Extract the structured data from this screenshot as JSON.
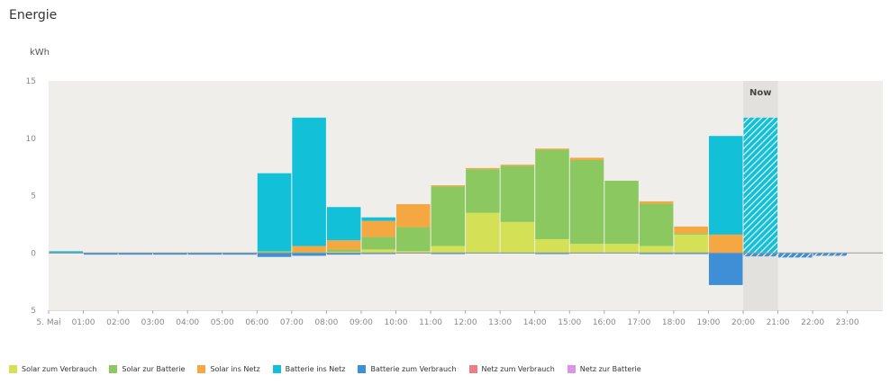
{
  "title": "Energie",
  "chart_data": {
    "type": "bar",
    "stacked": true,
    "ylabel": "kWh",
    "ylim": [
      -5,
      15
    ],
    "yticks": [
      {
        "value": 15,
        "label": "15"
      },
      {
        "value": 10,
        "label": "10"
      },
      {
        "value": 5,
        "label": "5"
      },
      {
        "value": 0,
        "label": "0"
      },
      {
        "value": -5,
        "label": "5"
      }
    ],
    "categories": [
      "00:00",
      "01:00",
      "02:00",
      "03:00",
      "04:00",
      "05:00",
      "06:00",
      "07:00",
      "08:00",
      "09:00",
      "10:00",
      "11:00",
      "12:00",
      "13:00",
      "14:00",
      "15:00",
      "16:00",
      "17:00",
      "18:00",
      "19:00",
      "20:00",
      "21:00",
      "22:00",
      "23:00"
    ],
    "xtick_labels": [
      "5. Mai",
      "01:00",
      "02:00",
      "03:00",
      "04:00",
      "05:00",
      "06:00",
      "07:00",
      "08:00",
      "09:00",
      "10:00",
      "11:00",
      "12:00",
      "13:00",
      "14:00",
      "15:00",
      "16:00",
      "17:00",
      "18:00",
      "19:00",
      "20:00",
      "21:00",
      "22:00",
      "23:00"
    ],
    "now_label": "Now",
    "now_hour": 20,
    "forecast_from_hour": 20,
    "grid": false,
    "legend_position": "bottom",
    "series": [
      {
        "name": "Solar zum Verbrauch",
        "color": "#d4e157",
        "values": [
          0,
          0,
          0,
          0,
          0,
          0,
          0.05,
          0.05,
          0.1,
          0.3,
          0.15,
          0.6,
          3.5,
          2.7,
          1.2,
          0.8,
          0.8,
          0.6,
          1.6,
          0,
          0,
          0,
          0,
          0
        ]
      },
      {
        "name": "Solar zur Batterie",
        "color": "#8bc860",
        "values": [
          0,
          0,
          0,
          0,
          0,
          0,
          0.1,
          0.05,
          0.2,
          1.1,
          2.1,
          5.2,
          3.8,
          4.9,
          7.8,
          7.3,
          5.5,
          3.7,
          0.1,
          0,
          0,
          0,
          0,
          0
        ]
      },
      {
        "name": "Solar ins Netz",
        "color": "#f5a742",
        "values": [
          0,
          0,
          0,
          0,
          0,
          0,
          0,
          0.5,
          0.8,
          1.4,
          2.0,
          0.1,
          0.1,
          0.1,
          0.1,
          0.2,
          0,
          0.2,
          0.6,
          1.6,
          0,
          0,
          0,
          0
        ]
      },
      {
        "name": "Batterie ins Netz",
        "color": "#12c0d8",
        "values": [
          0.15,
          0,
          0,
          0,
          0,
          0,
          6.8,
          11.2,
          2.9,
          0.3,
          0,
          0,
          0,
          0,
          0,
          0,
          0,
          0,
          0,
          8.6,
          11.8,
          0,
          0,
          0
        ]
      },
      {
        "name": "Batterie zum Verbrauch",
        "color": "#3f8fd6",
        "values": [
          -0.02,
          -0.15,
          -0.15,
          -0.15,
          -0.15,
          -0.15,
          -0.35,
          -0.25,
          -0.15,
          -0.1,
          -0.05,
          -0.1,
          -0.05,
          -0.05,
          -0.1,
          -0.05,
          -0.05,
          -0.1,
          -0.1,
          -2.8,
          -0.3,
          -0.4,
          -0.25,
          0
        ]
      },
      {
        "name": "Netz zum Verbrauch",
        "color": "#ef7b84",
        "values": [
          0,
          0,
          0,
          0,
          0,
          0,
          0,
          0,
          0,
          0,
          0,
          0,
          0,
          0,
          0,
          0,
          0,
          0,
          0,
          0,
          0,
          0,
          0,
          0
        ]
      },
      {
        "name": "Netz zur Batterie",
        "color": "#dd94e8",
        "values": [
          0,
          0,
          0,
          0,
          0,
          0,
          0,
          0,
          0,
          0,
          0,
          0,
          0,
          0,
          0,
          0,
          0,
          0,
          0,
          0,
          0,
          0,
          0,
          0
        ]
      }
    ]
  }
}
